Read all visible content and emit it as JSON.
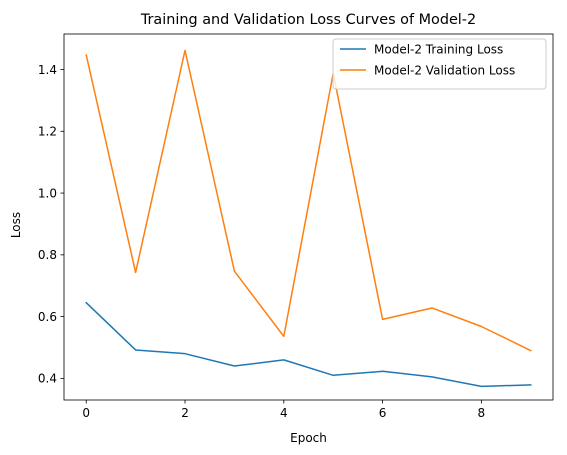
{
  "chart_data": {
    "type": "line",
    "title": "Training and Validation Loss Curves of Model-2",
    "xlabel": "Epoch",
    "ylabel": "Loss",
    "x": [
      0,
      1,
      2,
      3,
      4,
      5,
      6,
      7,
      8,
      9
    ],
    "xlim": [
      -0.45,
      9.45
    ],
    "ylim": [
      0.33,
      1.515
    ],
    "xticks": [
      0,
      2,
      4,
      6,
      8
    ],
    "xtick_labels": [
      "0",
      "2",
      "4",
      "6",
      "8"
    ],
    "yticks": [
      0.4,
      0.6,
      0.8,
      1.0,
      1.2,
      1.4
    ],
    "ytick_labels": [
      "0.4",
      "0.6",
      "0.8",
      "1.0",
      "1.2",
      "1.4"
    ],
    "grid": false,
    "legend_position": "top-right",
    "series": [
      {
        "name": "Model-2 Training Loss",
        "color": "#1f77b4",
        "values": [
          0.645,
          0.492,
          0.48,
          0.44,
          0.46,
          0.41,
          0.423,
          0.405,
          0.374,
          0.379
        ]
      },
      {
        "name": "Model-2 Validation Loss",
        "color": "#ff7f0e",
        "values": [
          1.447,
          0.743,
          1.462,
          0.747,
          0.536,
          1.388,
          0.591,
          0.628,
          0.568,
          0.49
        ]
      }
    ]
  }
}
